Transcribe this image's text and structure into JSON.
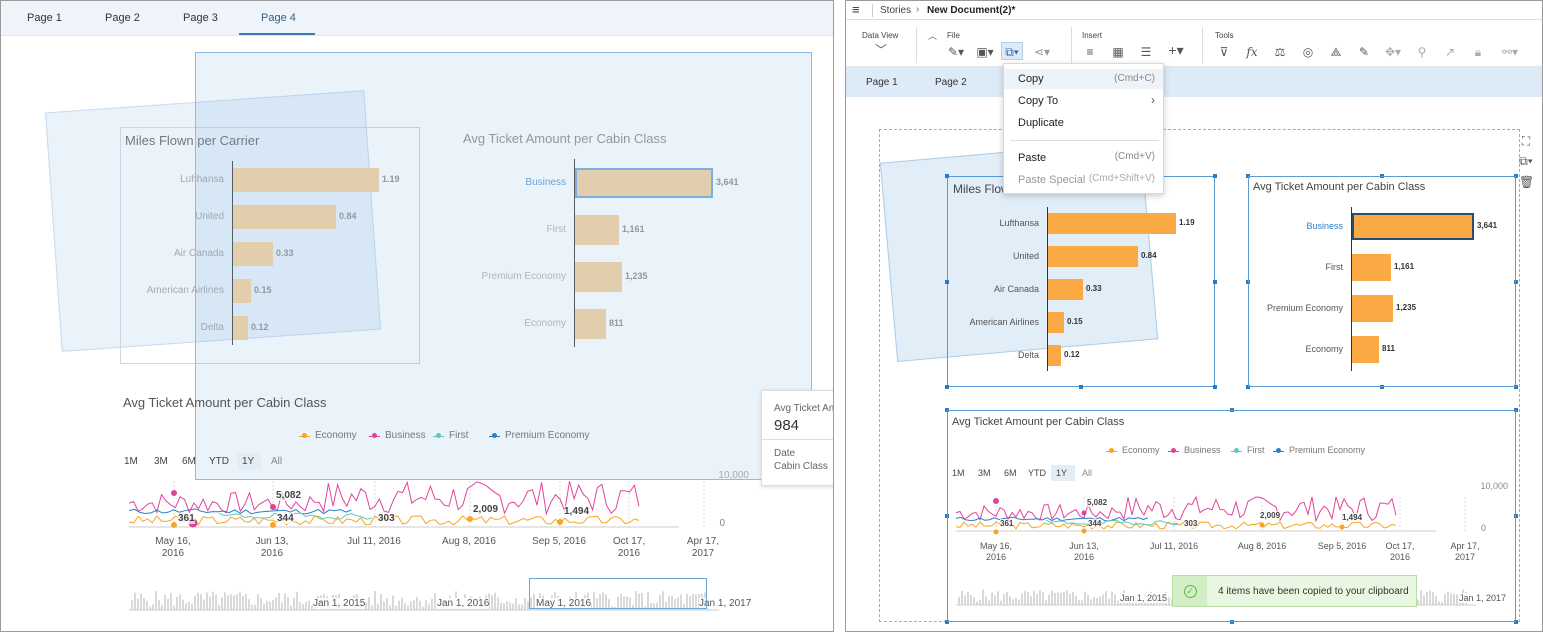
{
  "left": {
    "tabs": [
      "Page 1",
      "Page 2",
      "Page 3",
      "Page 4"
    ],
    "active_tab": 3,
    "chart1": {
      "title": "Miles Flown per Carrier",
      "categories": [
        "Lufthansa",
        "United",
        "Air Canada",
        "American Airlines",
        "Delta"
      ],
      "values": [
        "1.19",
        "0.84",
        "0.33",
        "0.15",
        "0.12"
      ]
    },
    "chart2": {
      "title": "Avg Ticket Amount per Cabin Class",
      "categories": [
        "Business",
        "First",
        "Premium Economy",
        "Economy"
      ],
      "values": [
        "3,641",
        "1,161",
        "1,235",
        "811"
      ]
    },
    "chart3": {
      "title": "Avg Ticket Amount per Cabin Class",
      "legend": [
        "Economy",
        "Business",
        "First",
        "Premium Economy"
      ],
      "ranges": [
        "1M",
        "3M",
        "6M",
        "YTD",
        "1Y",
        "All"
      ],
      "selected_range": "1Y",
      "y_top": "10,000",
      "y_zero": "0",
      "x_labels": [
        [
          "May 16,",
          "2016"
        ],
        [
          "Jun 13,",
          "2016"
        ],
        [
          "Jul 11, 2016",
          ""
        ],
        [
          "Aug 8, 2016",
          ""
        ],
        [
          "Sep 5, 2016",
          ""
        ],
        [
          "Oct 17,",
          "2016"
        ],
        [
          "Apr 17,",
          "2017"
        ]
      ],
      "data_labels": [
        "361",
        "5,082",
        "344",
        "303",
        "2,009",
        "1,494"
      ],
      "nav_labels": [
        "Jan 1, 2015",
        "Jan 1, 2016",
        "May 1, 2016",
        "Jan 1, 2017"
      ]
    },
    "tooltip": {
      "title": "Avg Ticket Am",
      "value": "984",
      "row1": "Date",
      "row2": "Cabin Class"
    }
  },
  "right": {
    "breadcrumb": [
      "Stories",
      "New Document(2)*"
    ],
    "toolbar": {
      "data_view": "Data View",
      "file": "File",
      "insert": "Insert",
      "tools": "Tools"
    },
    "tabs": [
      "Page 1",
      "Page 2"
    ],
    "menu": {
      "items": [
        {
          "label": "Copy",
          "shortcut": "(Cmd+C)"
        },
        {
          "label": "Copy To",
          "shortcut": "›"
        },
        {
          "label": "Duplicate",
          "shortcut": ""
        },
        {
          "label": "Paste",
          "shortcut": "(Cmd+V)"
        },
        {
          "label": "Paste Special",
          "shortcut": "(Cmd+Shift+V)"
        }
      ]
    },
    "chart1": {
      "title": "Miles Flow",
      "categories": [
        "Lufthansa",
        "United",
        "Air Canada",
        "American Airlines",
        "Delta"
      ],
      "values": [
        "1.19",
        "0.84",
        "0.33",
        "0.15",
        "0.12"
      ]
    },
    "chart2": {
      "title": "Avg Ticket Amount per Cabin Class",
      "categories": [
        "Business",
        "First",
        "Premium Economy",
        "Economy"
      ],
      "values": [
        "3,641",
        "1,161",
        "1,235",
        "811"
      ]
    },
    "chart3": {
      "title": "Avg Ticket Amount per Cabin Class",
      "legend": [
        "Economy",
        "Business",
        "First",
        "Premium Economy"
      ],
      "ranges": [
        "1M",
        "3M",
        "6M",
        "YTD",
        "1Y",
        "All"
      ],
      "y_top": "10,000",
      "y_zero": "0",
      "x_labels": [
        [
          "May 16,",
          "2016"
        ],
        [
          "Jun 13,",
          "2016"
        ],
        [
          "Jul 11, 2016",
          ""
        ],
        [
          "Aug 8, 2016",
          ""
        ],
        [
          "Sep 5, 2016",
          ""
        ],
        [
          "Oct 17,",
          "2016"
        ],
        [
          "Apr 17,",
          "2017"
        ]
      ],
      "data_labels": [
        "361",
        "5,082",
        "344",
        "303",
        "2,009",
        "1,494"
      ],
      "nav_labels": [
        "Jan 1, 2015",
        "Jan 1, 2017"
      ]
    },
    "toast": "4 items have been copied to your clipboard"
  },
  "colors": {
    "bar_faded": "#f5d4a8",
    "bar": "#fba944",
    "selection": "#5b9bd5",
    "economy": "#f5a623",
    "business": "#e0449a",
    "first": "#5fc8c0",
    "premium": "#2d7fc6",
    "accent": "#346187",
    "toast_bg": "#e9f6e1",
    "toast_icon": "#58b947"
  },
  "chart_data": [
    {
      "type": "bar",
      "title": "Miles Flown per Carrier",
      "categories": [
        "Lufthansa",
        "United",
        "Air Canada",
        "American Airlines",
        "Delta"
      ],
      "values": [
        1.19,
        0.84,
        0.33,
        0.15,
        0.12
      ]
    },
    {
      "type": "bar",
      "title": "Avg Ticket Amount per Cabin Class",
      "categories": [
        "Business",
        "First",
        "Premium Economy",
        "Economy"
      ],
      "values": [
        3641,
        1161,
        1235,
        811
      ]
    },
    {
      "type": "line",
      "title": "Avg Ticket Amount per Cabin Class",
      "series": [
        {
          "name": "Economy"
        },
        {
          "name": "Business"
        },
        {
          "name": "First"
        },
        {
          "name": "Premium Economy"
        }
      ],
      "ylim": [
        0,
        10000
      ]
    }
  ]
}
